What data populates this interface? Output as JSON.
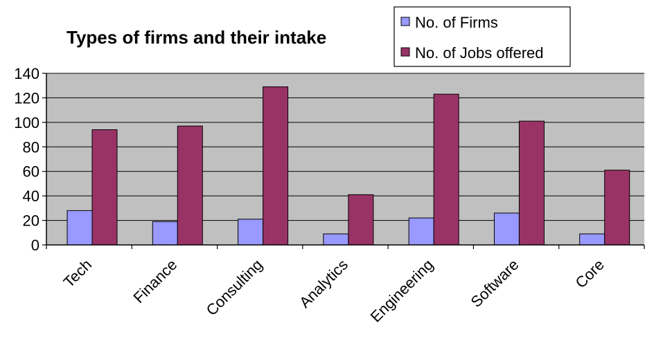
{
  "chart_data": {
    "type": "bar",
    "title": "Types of firms and their intake",
    "categories": [
      "Tech",
      "Finance",
      "Consulting",
      "Analytics",
      "Engineering",
      "Software",
      "Core"
    ],
    "series": [
      {
        "name": "No. of Firms",
        "color": "#9999ff",
        "values": [
          28,
          19,
          21,
          9,
          22,
          26,
          9
        ]
      },
      {
        "name": "No. of Jobs offered",
        "color": "#993366",
        "values": [
          94,
          97,
          129,
          41,
          123,
          101,
          61
        ]
      }
    ],
    "ylim": [
      0,
      140
    ],
    "yticks": [
      "0",
      "20",
      "40",
      "60",
      "80",
      "100",
      "120",
      "140"
    ],
    "grid": true,
    "legend_position": "top-right",
    "plot_background": "#c0c0c0"
  }
}
